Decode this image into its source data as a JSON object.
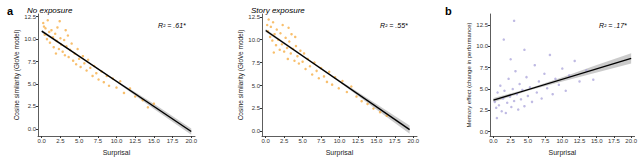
{
  "chart_data": [
    {
      "type": "scatter",
      "panel_label": "a",
      "title": "No exposure",
      "annotation": "R² = .61*",
      "x_label": "Surprisal",
      "y_label": "Cosine similarity (GloVe model)",
      "color": "#f5aa3c",
      "xlim": [
        -0.5,
        20.5
      ],
      "xticks": [
        {
          "value": 0,
          "label": "0.0"
        },
        {
          "value": 2.5,
          "label": "2.5"
        },
        {
          "value": 5,
          "label": "5.0"
        },
        {
          "value": 7.5,
          "label": "7.5"
        },
        {
          "value": 10,
          "label": "10.0"
        },
        {
          "value": 12.5,
          "label": "12.5"
        },
        {
          "value": 15,
          "label": "15.0"
        },
        {
          "value": 17.5,
          "label": "17.5"
        },
        {
          "value": 20,
          "label": "20.0"
        }
      ],
      "ylim": [
        -0.8,
        12.8
      ],
      "yticks": [
        {
          "value": 0,
          "label": "0.0"
        },
        {
          "value": 2.5,
          "label": "2.5"
        },
        {
          "value": 5,
          "label": "5.0"
        },
        {
          "value": 7.5,
          "label": "7.5"
        },
        {
          "value": 10,
          "label": "10.0"
        },
        {
          "value": 12.5,
          "label": "12.5"
        }
      ],
      "points": [
        [
          0.2,
          11.8
        ],
        [
          0.3,
          11.4
        ],
        [
          0.4,
          10.5
        ],
        [
          0.5,
          11.2
        ],
        [
          0.7,
          10.0
        ],
        [
          0.8,
          12.1
        ],
        [
          1.0,
          10.8
        ],
        [
          1.1,
          9.6
        ],
        [
          1.3,
          11.0
        ],
        [
          1.5,
          10.2
        ],
        [
          1.6,
          9.1
        ],
        [
          1.8,
          10.6
        ],
        [
          1.9,
          8.4
        ],
        [
          2.0,
          9.8
        ],
        [
          2.1,
          11.3
        ],
        [
          2.3,
          8.9
        ],
        [
          2.4,
          12.0
        ],
        [
          2.5,
          10.1
        ],
        [
          2.6,
          9.4
        ],
        [
          2.8,
          8.6
        ],
        [
          3.0,
          9.9
        ],
        [
          3.1,
          8.2
        ],
        [
          3.2,
          11.0
        ],
        [
          3.3,
          9.2
        ],
        [
          3.5,
          10.4
        ],
        [
          3.6,
          8.0
        ],
        [
          3.8,
          8.8
        ],
        [
          4.0,
          9.5
        ],
        [
          4.2,
          7.6
        ],
        [
          4.4,
          8.4
        ],
        [
          4.6,
          7.2
        ],
        [
          4.8,
          8.9
        ],
        [
          5.0,
          7.8
        ],
        [
          5.2,
          6.9
        ],
        [
          5.5,
          8.1
        ],
        [
          5.7,
          7.3
        ],
        [
          6.0,
          6.5
        ],
        [
          6.2,
          7.7
        ],
        [
          6.5,
          6.8
        ],
        [
          6.8,
          5.9
        ],
        [
          7.0,
          7.0
        ],
        [
          7.3,
          6.2
        ],
        [
          7.6,
          5.5
        ],
        [
          8.0,
          6.4
        ],
        [
          8.3,
          5.2
        ],
        [
          8.7,
          5.9
        ],
        [
          9.0,
          4.8
        ],
        [
          9.5,
          5.6
        ],
        [
          10.0,
          4.6
        ],
        [
          10.5,
          5.3
        ],
        [
          11.0,
          4.0
        ],
        [
          11.8,
          4.5
        ],
        [
          12.5,
          3.6
        ],
        [
          13.5,
          3.2
        ],
        [
          14.2,
          2.4
        ],
        [
          15.0,
          2.8
        ]
      ],
      "fit": {
        "x": [
          0,
          20
        ],
        "y": [
          10.9,
          -0.3
        ]
      },
      "ci": {
        "x": [
          0,
          5,
          10,
          15,
          20
        ],
        "lower": [
          10.75,
          8.02,
          5.2,
          2.2,
          -0.65
        ],
        "upper": [
          11.05,
          8.18,
          5.4,
          2.8,
          0.05
        ]
      }
    },
    {
      "type": "scatter",
      "title": "Story exposure",
      "annotation": "R² = .55*",
      "x_label": "Surprisal",
      "y_label": "Cosine similarity (GloVe model)",
      "color": "#f5aa3c",
      "xlim": [
        -0.5,
        20.5
      ],
      "xticks": [
        {
          "value": 0,
          "label": "0.0"
        },
        {
          "value": 2.5,
          "label": "2.5"
        },
        {
          "value": 5,
          "label": "5.0"
        },
        {
          "value": 7.5,
          "label": "7.5"
        },
        {
          "value": 10,
          "label": "10.0"
        },
        {
          "value": 12.5,
          "label": "12.5"
        },
        {
          "value": 15,
          "label": "15.0"
        },
        {
          "value": 17.5,
          "label": "17.5"
        },
        {
          "value": 20,
          "label": "20.0"
        }
      ],
      "ylim": [
        -0.5,
        12.8
      ],
      "yticks": [
        {
          "value": 0,
          "label": "0.0"
        },
        {
          "value": 2.5,
          "label": "2.5"
        },
        {
          "value": 5,
          "label": "5.0"
        },
        {
          "value": 7.5,
          "label": "7.5"
        },
        {
          "value": 10,
          "label": "10.0"
        },
        {
          "value": 12.5,
          "label": "12.5"
        }
      ],
      "points": [
        [
          0.2,
          11.6
        ],
        [
          0.3,
          10.9
        ],
        [
          0.4,
          12.2
        ],
        [
          0.6,
          10.3
        ],
        [
          0.7,
          11.4
        ],
        [
          0.9,
          9.9
        ],
        [
          1.0,
          11.9
        ],
        [
          1.2,
          10.6
        ],
        [
          1.4,
          9.4
        ],
        [
          1.5,
          11.1
        ],
        [
          1.7,
          10.0
        ],
        [
          1.9,
          8.9
        ],
        [
          2.0,
          10.7
        ],
        [
          2.2,
          9.5
        ],
        [
          2.3,
          11.6
        ],
        [
          2.5,
          8.7
        ],
        [
          2.7,
          10.2
        ],
        [
          2.9,
          9.1
        ],
        [
          3.0,
          7.9
        ],
        [
          3.2,
          9.8
        ],
        [
          3.4,
          8.5
        ],
        [
          3.5,
          10.6
        ],
        [
          3.7,
          9.0
        ],
        [
          3.9,
          7.7
        ],
        [
          4.1,
          9.3
        ],
        [
          4.3,
          8.2
        ],
        [
          4.5,
          7.4
        ],
        [
          4.7,
          8.8
        ],
        [
          5.0,
          7.6
        ],
        [
          5.2,
          8.5
        ],
        [
          5.4,
          6.8
        ],
        [
          5.7,
          7.9
        ],
        [
          6.0,
          7.1
        ],
        [
          6.3,
          6.2
        ],
        [
          6.6,
          7.5
        ],
        [
          6.9,
          6.6
        ],
        [
          7.2,
          5.8
        ],
        [
          7.5,
          6.9
        ],
        [
          7.9,
          6.0
        ],
        [
          8.3,
          5.4
        ],
        [
          8.6,
          6.5
        ],
        [
          9.0,
          5.1
        ],
        [
          9.4,
          5.9
        ],
        [
          9.9,
          4.7
        ],
        [
          10.4,
          5.5
        ],
        [
          11.0,
          4.3
        ],
        [
          11.6,
          4.9
        ],
        [
          12.3,
          3.8
        ],
        [
          13.0,
          3.3
        ],
        [
          13.8,
          3.0
        ],
        [
          14.6,
          2.5
        ],
        [
          15.5,
          2.1
        ],
        [
          16.4,
          1.7
        ],
        [
          1.1,
          8.6
        ],
        [
          3.1,
          11.3
        ],
        [
          4.0,
          10.3
        ]
      ],
      "fit": {
        "x": [
          0,
          19.5
        ],
        "y": [
          11.0,
          0.2
        ]
      },
      "ci": {
        "x": [
          0,
          5,
          10,
          15,
          19.5
        ],
        "lower": [
          10.83,
          8.14,
          5.35,
          2.4,
          -0.25
        ],
        "upper": [
          11.17,
          8.32,
          5.57,
          2.98,
          0.65
        ]
      }
    },
    {
      "type": "scatter",
      "panel_label": "b",
      "annotation": "R² = .17*",
      "x_label": "Surprisal",
      "y_label": "Memory effect (change in performance)",
      "color": "#a9a3d9",
      "xlim": [
        -0.5,
        20.5
      ],
      "xticks": [
        {
          "value": 0,
          "label": "0.0"
        },
        {
          "value": 2.5,
          "label": "2.5"
        },
        {
          "value": 5,
          "label": "5.0"
        },
        {
          "value": 7.5,
          "label": "7.5"
        },
        {
          "value": 10,
          "label": "10.0"
        },
        {
          "value": 12.5,
          "label": "12.5"
        },
        {
          "value": 15,
          "label": "15.0"
        },
        {
          "value": 17.5,
          "label": "17.5"
        },
        {
          "value": 20,
          "label": "20.0"
        }
      ],
      "ylim": [
        -0.5,
        13.8
      ],
      "yticks": [
        {
          "value": 0,
          "label": "0.0"
        },
        {
          "value": 2.5,
          "label": "2.5"
        },
        {
          "value": 5,
          "label": "5.0"
        },
        {
          "value": 7.5,
          "label": "7.5"
        },
        {
          "value": 10,
          "label": "10.0"
        },
        {
          "value": 12.5,
          "label": "12.5"
        }
      ],
      "points": [
        [
          0.2,
          3.5
        ],
        [
          0.4,
          2.8
        ],
        [
          0.5,
          1.6
        ],
        [
          0.6,
          4.6
        ],
        [
          0.8,
          3.1
        ],
        [
          1.0,
          5.4
        ],
        [
          1.2,
          2.4
        ],
        [
          1.4,
          3.9
        ],
        [
          1.5,
          10.8
        ],
        [
          1.6,
          4.8
        ],
        [
          1.8,
          2.2
        ],
        [
          2.0,
          3.4
        ],
        [
          2.2,
          6.2
        ],
        [
          2.4,
          4.1
        ],
        [
          2.5,
          8.5
        ],
        [
          2.6,
          2.9
        ],
        [
          2.8,
          5.0
        ],
        [
          3.0,
          3.6
        ],
        [
          3.0,
          13.0
        ],
        [
          3.2,
          7.1
        ],
        [
          3.4,
          4.4
        ],
        [
          3.6,
          2.6
        ],
        [
          3.8,
          5.6
        ],
        [
          4.0,
          3.8
        ],
        [
          4.2,
          4.9
        ],
        [
          4.5,
          3.0
        ],
        [
          4.5,
          9.6
        ],
        [
          4.8,
          6.4
        ],
        [
          5.0,
          4.2
        ],
        [
          5.3,
          5.2
        ],
        [
          5.6,
          3.5
        ],
        [
          6.0,
          7.8
        ],
        [
          6.3,
          4.6
        ],
        [
          6.6,
          5.9
        ],
        [
          7.0,
          3.9
        ],
        [
          7.4,
          6.8
        ],
        [
          7.8,
          5.1
        ],
        [
          8.2,
          9.0
        ],
        [
          8.6,
          4.4
        ],
        [
          9.0,
          6.2
        ],
        [
          9.5,
          5.5
        ],
        [
          10.0,
          7.4
        ],
        [
          10.5,
          4.8
        ],
        [
          11.0,
          6.6
        ],
        [
          11.8,
          8.3
        ],
        [
          12.5,
          5.9
        ],
        [
          13.5,
          7.2
        ],
        [
          14.5,
          6.1
        ]
      ],
      "fit": {
        "x": [
          0,
          20
        ],
        "y": [
          3.7,
          8.6
        ]
      },
      "ci": {
        "x": [
          0,
          5,
          10,
          15,
          20
        ],
        "lower": [
          3.45,
          4.81,
          5.9,
          6.93,
          8.0
        ],
        "upper": [
          3.95,
          5.05,
          6.4,
          7.83,
          9.2
        ]
      }
    }
  ]
}
